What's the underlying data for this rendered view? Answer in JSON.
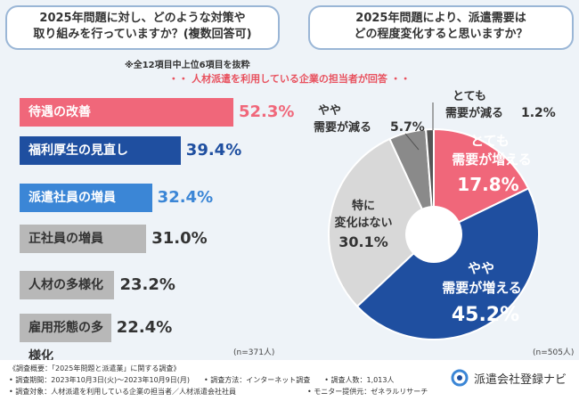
{
  "q1": {
    "line1": "2025年問題に対し、どのような対策や",
    "line2": "取り組みを行っていますか？(複数回答可)"
  },
  "q2": {
    "line1": "2025年問題により、派遣需要は",
    "line2": "どの程度変化すると思いますか？"
  },
  "note_top": "※全12項目中上位6項目を抜粋",
  "respondent": "・・ 人材派遣を利用している企業の担当者が回答 ・・",
  "chart_data": [
    {
      "type": "bar",
      "orientation": "horizontal",
      "categories": [
        "待遇の改善",
        "福利厚生の見直し",
        "派遣社員の増員",
        "正社員の増員",
        "人材の多様化",
        "雇用形態の多様化"
      ],
      "values": [
        52.3,
        39.4,
        32.4,
        31.0,
        23.2,
        22.4
      ],
      "value_labels": [
        "52.3%",
        "39.4%",
        "32.4%",
        "31.0%",
        "23.2%",
        "22.4%"
      ],
      "colors": [
        "#f0677a",
        "#1f4fa0",
        "#3b86d6",
        "#b8b8b8",
        "#b8b8b8",
        "#b8b8b8"
      ],
      "n_label": "(n=371人)"
    },
    {
      "type": "pie",
      "labels": [
        "とても需要が増える",
        "やや需要が増える",
        "特に変化はない",
        "やや需要が減る",
        "とても需要が減る"
      ],
      "values": [
        17.8,
        45.2,
        30.1,
        5.7,
        1.2
      ],
      "value_labels": [
        "17.8%",
        "45.2%",
        "30.1%",
        "5.7%",
        "1.2%"
      ],
      "colors": [
        "#f0677a",
        "#1f4fa0",
        "#d8d8d8",
        "#8a8a8a",
        "#555555"
      ],
      "n_label": "(n=505人)"
    }
  ],
  "pie_text": {
    "inc_strong_1": "とても",
    "inc_strong_2": "需要が増える",
    "inc_some_1": "やや",
    "inc_some_2": "需要が増える",
    "none_1": "特に",
    "none_2": "変化はない",
    "dec_some_1": "やや",
    "dec_some_2": "需要が減る",
    "dec_strong_1": "とても",
    "dec_strong_2": "需要が減る"
  },
  "footer": {
    "line1": "《調査概要：「2025年問題と派遣業」に関する調査》",
    "line2": "• 調査期間：2023年10月3日(火)～2023年10月9日(月)　　• 調査方法：インターネット調査　　• 調査人数：1,013人",
    "line3": "• 調査対象：人材派遣を利用している企業の担当者／人材派遣会社社員　　　　　　　　　　• モニター提供元：ゼネラルリサーチ",
    "brand": "派遣会社登録ナビ"
  }
}
